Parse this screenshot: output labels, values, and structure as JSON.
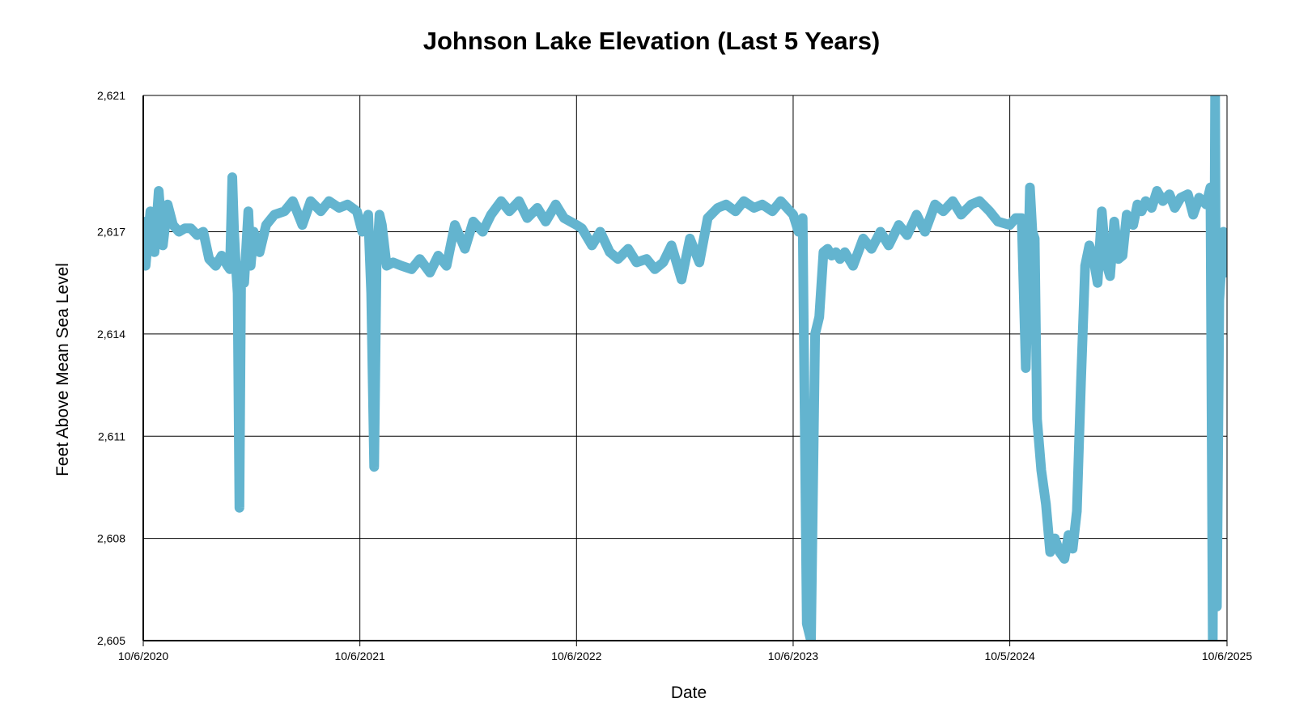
{
  "chart_data": {
    "type": "line",
    "title": "Johnson Lake Elevation (Last 5 Years)",
    "xlabel": "Date",
    "ylabel": "Feet Above Mean Sea Level",
    "ylim": [
      2605,
      2621
    ],
    "xlim": [
      "2020-10-06",
      "2025-10-06"
    ],
    "grid": true,
    "legend": "none",
    "y_ticks": [
      {
        "value": 2605,
        "label": "2,605"
      },
      {
        "value": 2608,
        "label": "2,608"
      },
      {
        "value": 2611,
        "label": "2,611"
      },
      {
        "value": 2614,
        "label": "2,614"
      },
      {
        "value": 2617,
        "label": "2,617"
      },
      {
        "value": 2621,
        "label": "2,621"
      }
    ],
    "x_ticks": [
      {
        "value": "2020-10-06",
        "label": "10/6/2020"
      },
      {
        "value": "2021-10-06",
        "label": "10/6/2021"
      },
      {
        "value": "2022-10-06",
        "label": "10/6/2022"
      },
      {
        "value": "2023-10-06",
        "label": "10/6/2023"
      },
      {
        "value": "2024-10-05",
        "label": "10/5/2024"
      },
      {
        "value": "2025-10-06",
        "label": "10/6/2025"
      }
    ],
    "series": [
      {
        "color": "#63B4CF",
        "x": [
          "2020-10-06",
          "2020-10-10",
          "2020-10-18",
          "2020-10-25",
          "2020-11-01",
          "2020-11-08",
          "2020-11-16",
          "2020-11-25",
          "2020-12-05",
          "2020-12-15",
          "2020-12-25",
          "2021-01-05",
          "2021-01-15",
          "2021-01-25",
          "2021-02-05",
          "2021-02-15",
          "2021-02-25",
          "2021-03-01",
          "2021-03-05",
          "2021-03-08",
          "2021-03-11",
          "2021-03-14",
          "2021-03-17",
          "2021-03-20",
          "2021-03-25",
          "2021-04-01",
          "2021-04-05",
          "2021-04-10",
          "2021-04-20",
          "2021-05-01",
          "2021-05-15",
          "2021-06-01",
          "2021-06-15",
          "2021-07-01",
          "2021-07-15",
          "2021-08-01",
          "2021-08-15",
          "2021-09-01",
          "2021-09-15",
          "2021-10-01",
          "2021-10-10",
          "2021-10-20",
          "2021-10-25",
          "2021-10-30",
          "2021-11-03",
          "2021-11-08",
          "2021-11-12",
          "2021-11-20",
          "2021-12-01",
          "2021-12-15",
          "2022-01-01",
          "2022-01-15",
          "2022-02-01",
          "2022-02-15",
          "2022-03-01",
          "2022-03-15",
          "2022-04-01",
          "2022-04-15",
          "2022-05-01",
          "2022-05-15",
          "2022-06-01",
          "2022-06-15",
          "2022-07-01",
          "2022-07-15",
          "2022-08-01",
          "2022-08-15",
          "2022-09-01",
          "2022-09-15",
          "2022-10-06",
          "2022-10-15",
          "2022-11-01",
          "2022-11-15",
          "2022-12-01",
          "2022-12-15",
          "2023-01-01",
          "2023-01-15",
          "2023-02-01",
          "2023-02-15",
          "2023-03-01",
          "2023-03-15",
          "2023-04-01",
          "2023-04-15",
          "2023-05-01",
          "2023-05-15",
          "2023-06-01",
          "2023-06-15",
          "2023-07-01",
          "2023-07-15",
          "2023-08-01",
          "2023-08-15",
          "2023-09-01",
          "2023-09-15",
          "2023-10-06",
          "2023-10-15",
          "2023-10-22",
          "2023-10-29",
          "2023-11-05",
          "2023-11-12",
          "2023-11-19",
          "2023-11-26",
          "2023-12-03",
          "2023-12-10",
          "2023-12-17",
          "2023-12-24",
          "2024-01-01",
          "2024-01-15",
          "2024-02-01",
          "2024-02-15",
          "2024-03-01",
          "2024-03-15",
          "2024-04-01",
          "2024-04-15",
          "2024-05-01",
          "2024-05-15",
          "2024-06-01",
          "2024-06-15",
          "2024-07-01",
          "2024-07-15",
          "2024-08-01",
          "2024-08-15",
          "2024-09-01",
          "2024-09-15",
          "2024-10-05",
          "2024-10-15",
          "2024-10-25",
          "2024-11-01",
          "2024-11-08",
          "2024-11-12",
          "2024-11-16",
          "2024-11-20",
          "2024-11-27",
          "2024-12-05",
          "2024-12-12",
          "2024-12-20",
          "2024-12-28",
          "2025-01-05",
          "2025-01-12",
          "2025-01-19",
          "2025-01-26",
          "2025-02-02",
          "2025-02-09",
          "2025-02-16",
          "2025-02-23",
          "2025-03-02",
          "2025-03-09",
          "2025-03-16",
          "2025-03-23",
          "2025-03-30",
          "2025-04-06",
          "2025-04-13",
          "2025-04-20",
          "2025-05-01",
          "2025-05-08",
          "2025-05-15",
          "2025-05-22",
          "2025-06-01",
          "2025-06-10",
          "2025-06-20",
          "2025-07-01",
          "2025-07-10",
          "2025-07-20",
          "2025-08-01",
          "2025-08-10",
          "2025-08-20",
          "2025-09-01",
          "2025-09-08",
          "2025-09-12",
          "2025-09-16",
          "2025-09-19",
          "2025-09-23",
          "2025-09-30",
          "2025-10-06"
        ],
        "values": [
          2617.3,
          2616.0,
          2617.6,
          2616.4,
          2618.2,
          2616.6,
          2617.8,
          2617.2,
          2617.0,
          2617.1,
          2617.1,
          2616.9,
          2617.0,
          2616.2,
          2616.0,
          2616.3,
          2616.0,
          2615.9,
          2618.6,
          2617.0,
          2616.0,
          2615.2,
          2608.9,
          2616.0,
          2615.5,
          2617.6,
          2616.0,
          2617.0,
          2616.4,
          2617.2,
          2617.5,
          2617.6,
          2617.9,
          2617.2,
          2617.9,
          2617.6,
          2617.9,
          2617.7,
          2617.8,
          2617.6,
          2617.0,
          2617.5,
          2615.2,
          2610.1,
          2616.0,
          2617.5,
          2617.2,
          2616.0,
          2616.1,
          2616.0,
          2615.9,
          2616.2,
          2615.8,
          2616.3,
          2616.0,
          2617.2,
          2616.5,
          2617.3,
          2617.0,
          2617.5,
          2617.9,
          2617.6,
          2617.9,
          2617.4,
          2617.7,
          2617.3,
          2617.8,
          2617.4,
          2617.2,
          2617.1,
          2616.6,
          2617.0,
          2616.4,
          2616.2,
          2616.5,
          2616.1,
          2616.2,
          2615.9,
          2616.1,
          2616.6,
          2615.6,
          2616.8,
          2616.1,
          2617.4,
          2617.7,
          2617.8,
          2617.6,
          2617.9,
          2617.7,
          2617.8,
          2617.6,
          2617.9,
          2617.5,
          2617.0,
          2617.4,
          2605.5,
          2604.9,
          2614.0,
          2614.5,
          2616.4,
          2616.5,
          2616.3,
          2616.4,
          2616.2,
          2616.4,
          2616.0,
          2616.8,
          2616.5,
          2617.0,
          2616.6,
          2617.2,
          2616.9,
          2617.5,
          2617.0,
          2617.8,
          2617.6,
          2617.9,
          2617.5,
          2617.8,
          2617.9,
          2617.6,
          2617.3,
          2617.2,
          2617.4,
          2617.4,
          2613.0,
          2618.3,
          2617.0,
          2616.8,
          2611.5,
          2610.0,
          2609.0,
          2607.6,
          2608.0,
          2607.6,
          2607.4,
          2608.1,
          2607.7,
          2608.8,
          2612.6,
          2616.0,
          2616.6,
          2616.2,
          2615.5,
          2617.6,
          2616.1,
          2615.7,
          2617.3,
          2616.2,
          2616.3,
          2617.5,
          2617.2,
          2617.8,
          2617.6,
          2617.9,
          2617.7,
          2618.2,
          2617.9,
          2618.1,
          2617.7,
          2618.0,
          2618.1,
          2617.5,
          2618.0,
          2617.8,
          2618.3,
          2605.0,
          2621.0,
          2606.0,
          2615.0,
          2617.0,
          2615.8
        ]
      }
    ]
  }
}
